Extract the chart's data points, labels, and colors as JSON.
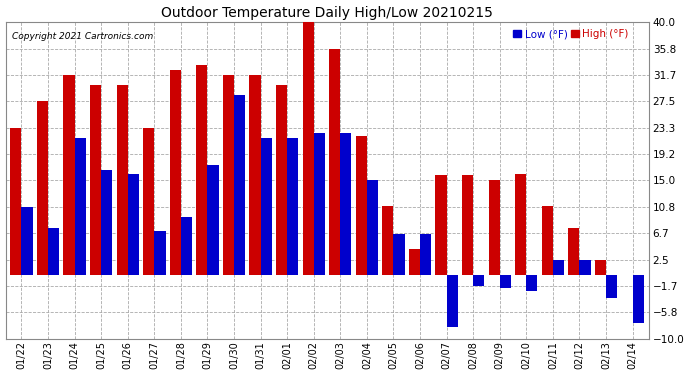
{
  "title": "Outdoor Temperature Daily High/Low 20210215",
  "copyright": "Copyright 2021 Cartronics.com",
  "color_low": "#0000cc",
  "color_high": "#cc0000",
  "background_color": "#ffffff",
  "ylim": [
    -10.0,
    40.0
  ],
  "yticks": [
    -10.0,
    -5.8,
    -1.7,
    2.5,
    6.7,
    10.8,
    15.0,
    19.2,
    23.3,
    27.5,
    31.7,
    35.8,
    40.0
  ],
  "dates": [
    "01/22",
    "01/23",
    "01/24",
    "01/25",
    "01/26",
    "01/27",
    "01/28",
    "01/29",
    "01/30",
    "01/31",
    "02/01",
    "02/02",
    "02/03",
    "02/04",
    "02/05",
    "02/06",
    "02/07",
    "02/08",
    "02/09",
    "02/10",
    "02/11",
    "02/12",
    "02/13",
    "02/14"
  ],
  "high": [
    23.3,
    27.5,
    31.7,
    30.0,
    30.0,
    23.3,
    32.5,
    33.3,
    31.7,
    31.7,
    30.0,
    40.0,
    35.8,
    22.0,
    11.0,
    4.2,
    15.8,
    15.8,
    15.0,
    16.0,
    11.0,
    7.5,
    2.5,
    0.0
  ],
  "low": [
    10.8,
    7.5,
    21.7,
    16.7,
    16.0,
    7.0,
    9.2,
    17.5,
    28.5,
    21.7,
    21.7,
    22.5,
    22.5,
    15.0,
    6.5,
    6.5,
    -8.2,
    -1.7,
    -2.0,
    -2.5,
    2.5,
    2.5,
    -3.5,
    -7.5
  ]
}
